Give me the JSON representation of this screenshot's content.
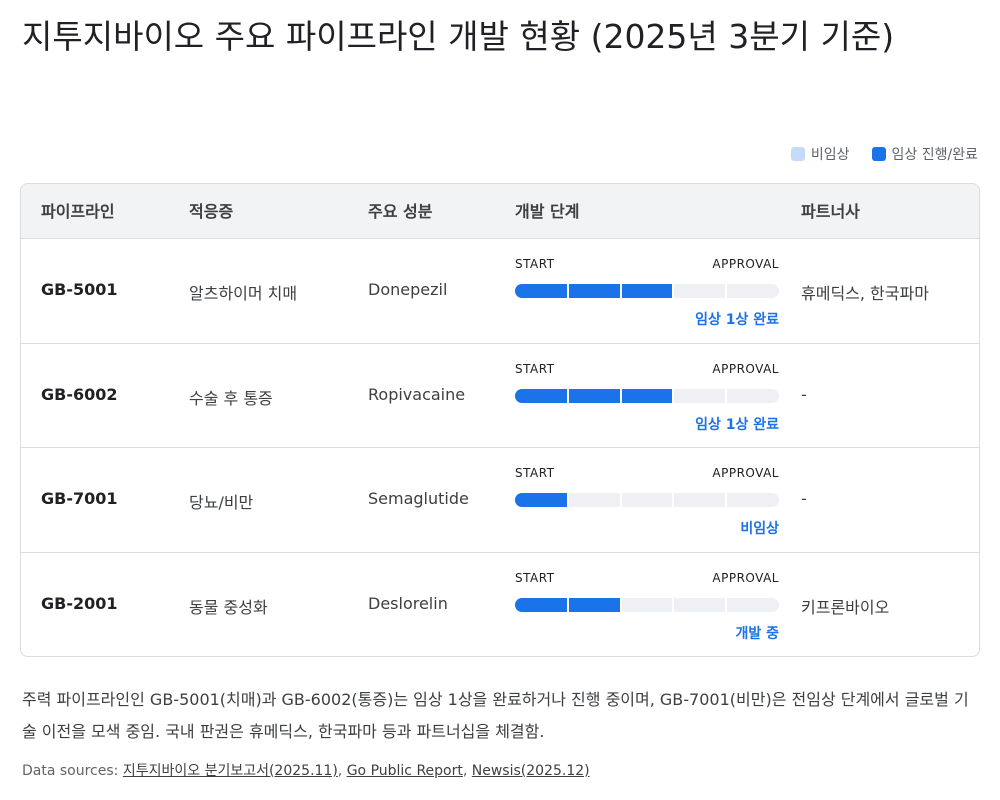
{
  "header": {
    "title": "지투지바이오 주요 파이프라인 개발 현황 (2025년 3분기 기준)"
  },
  "legend": [
    {
      "label": "비임상",
      "color": "#c6dafc"
    },
    {
      "label": "임상 진행/완료",
      "color": "#1a73e8"
    }
  ],
  "table": {
    "columns": [
      "파이프라인",
      "적응증",
      "주요 성분",
      "개발 단계",
      "파트너사"
    ],
    "bar_labels": {
      "start": "START",
      "end": "APPROVAL"
    },
    "total_steps": 5,
    "rows": [
      {
        "id": "GB-5001",
        "indication": "알츠하이머 치매",
        "ingredient": "Donepezil",
        "progress": 3,
        "stage": "임상 1상 완료",
        "partner": "휴메딕스, 한국파마"
      },
      {
        "id": "GB-6002",
        "indication": "수술 후 통증",
        "ingredient": "Ropivacaine",
        "progress": 3,
        "stage": "임상 1상 완료",
        "partner": "-"
      },
      {
        "id": "GB-7001",
        "indication": "당뇨/비만",
        "ingredient": "Semaglutide",
        "progress": 1,
        "stage": "비임상",
        "partner": "-"
      },
      {
        "id": "GB-2001",
        "indication": "동물 중성화",
        "ingredient": "Deslorelin",
        "progress": 2,
        "stage": "개발 중",
        "partner": "키프론바이오"
      }
    ]
  },
  "summary": "주력 파이프라인인 GB-5001(치매)과 GB-6002(통증)는 임상 1상을 완료하거나 진행 중이며, GB-7001(비만)은 전임상 단계에서 글로벌 기술 이전을 모색 중임. 국내 판권은 휴메딕스, 한국파마 등과 파트너십을 체결함.",
  "sources": {
    "label": "Data sources:",
    "separator": ", ",
    "links": [
      "지투지바이오 분기보고서(2025.11)",
      "Go Public Report",
      "Newsis(2025.12)"
    ]
  }
}
